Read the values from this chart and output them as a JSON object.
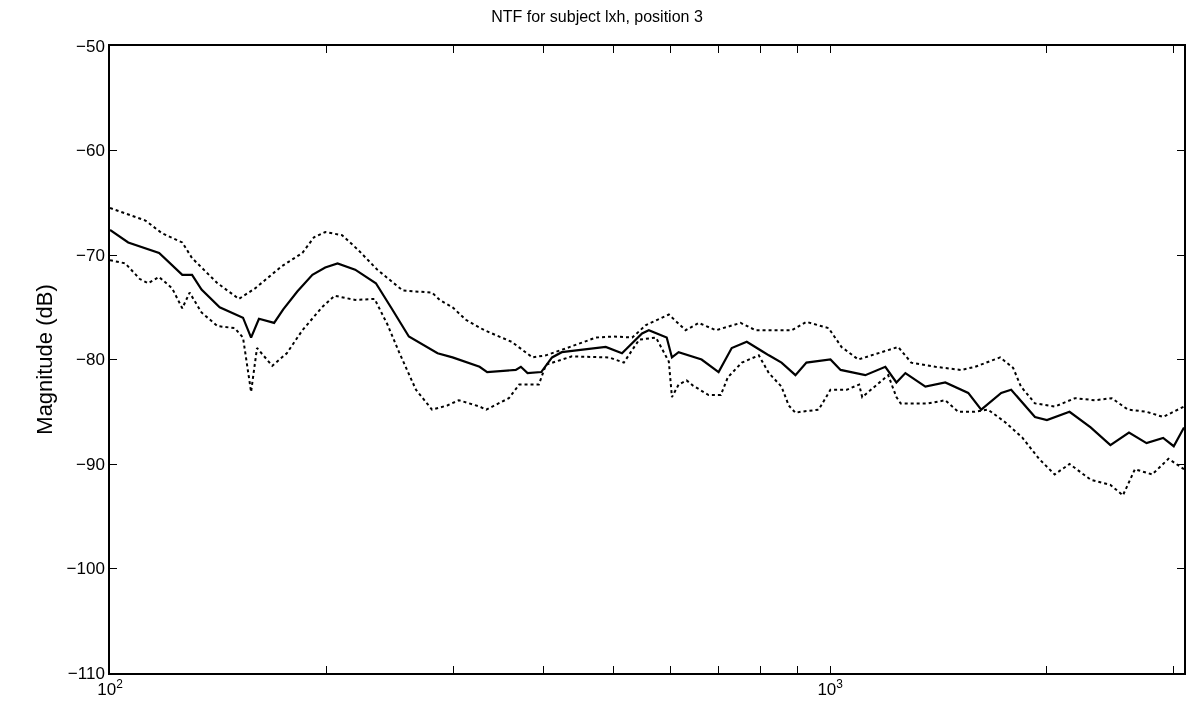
{
  "chart_data": {
    "type": "line",
    "title": "NTF for subject lxh, position 3",
    "ylabel": "Magnitude (dB)",
    "log": "x",
    "marker": "none",
    "xlim": [
      100,
      3100
    ],
    "ylim": [
      -110,
      -50
    ],
    "xticks": [
      {
        "value": 100,
        "label": "10$^{2}$"
      },
      {
        "value": 200,
        "label": null
      },
      {
        "value": 300,
        "label": null
      },
      {
        "value": 400,
        "label": null
      },
      {
        "value": 500,
        "label": null
      },
      {
        "value": 600,
        "label": null
      },
      {
        "value": 700,
        "label": null
      },
      {
        "value": 800,
        "label": null
      },
      {
        "value": 900,
        "label": null
      },
      {
        "value": 1000,
        "label": "10$^{3}$"
      },
      {
        "value": 2000,
        "label": null
      },
      {
        "value": 3000,
        "label": null
      }
    ],
    "yticks": [
      -110,
      -100,
      -90,
      -80,
      -70,
      -60,
      -50
    ],
    "series": [
      {
        "color": "#000000",
        "line_style": "solid",
        "x": [
          100,
          106,
          117,
          126,
          130,
          134,
          142,
          153,
          157,
          161,
          169,
          174,
          182,
          191,
          199,
          207,
          219,
          234,
          246,
          260,
          285,
          299,
          326,
          334,
          366,
          372,
          380,
          397,
          411,
          424,
          488,
          514,
          548,
          560,
          593,
          603,
          616,
          663,
          700,
          730,
          766,
          822,
          856,
          895,
          927,
          1001,
          1034,
          1119,
          1193,
          1236,
          1272,
          1356,
          1445,
          1555,
          1621,
          1728,
          1784,
          1925,
          2000,
          2150,
          2300,
          2450,
          2600,
          2750,
          2900,
          3000,
          3100
        ],
        "values": [
          -67.6,
          -68.8,
          -69.8,
          -71.9,
          -71.9,
          -73.3,
          -75.0,
          -76.0,
          -77.9,
          -76.1,
          -76.5,
          -75.2,
          -73.5,
          -71.9,
          -71.2,
          -70.8,
          -71.4,
          -72.7,
          -75.1,
          -77.8,
          -79.4,
          -79.8,
          -80.7,
          -81.2,
          -81.0,
          -80.7,
          -81.3,
          -81.2,
          -79.8,
          -79.3,
          -78.8,
          -79.4,
          -77.5,
          -77.2,
          -77.9,
          -79.8,
          -79.3,
          -80.0,
          -81.2,
          -78.9,
          -78.3,
          -79.6,
          -80.3,
          -81.5,
          -80.3,
          -80.0,
          -81.0,
          -81.5,
          -80.7,
          -82.2,
          -81.3,
          -82.6,
          -82.2,
          -83.2,
          -84.8,
          -83.2,
          -82.9,
          -85.5,
          -85.8,
          -85.0,
          -86.5,
          -88.2,
          -87.0,
          -88.0,
          -87.5,
          -88.3,
          -86.5
        ]
      },
      {
        "color": "#000000",
        "line_style": "dotted",
        "x": [
          100,
          112,
          118,
          126,
          130,
          141,
          151,
          159,
          173,
          185,
          192,
          199,
          210,
          221,
          235,
          255,
          280,
          287,
          299,
          312,
          331,
          361,
          386,
          403,
          431,
          473,
          501,
          531,
          555,
          597,
          630,
          657,
          694,
          751,
          788,
          884,
          927,
          995,
          1037,
          1094,
          1204,
          1243,
          1296,
          1400,
          1520,
          1590,
          1722,
          1795,
          1841,
          1925,
          2052,
          2188,
          2333,
          2460,
          2592,
          2750,
          2900,
          3100
        ],
        "values": [
          -65.5,
          -66.7,
          -67.9,
          -68.8,
          -70.3,
          -72.7,
          -74.2,
          -73.2,
          -71.1,
          -69.8,
          -68.3,
          -67.8,
          -68.1,
          -69.5,
          -71.4,
          -73.4,
          -73.6,
          -74.3,
          -75.0,
          -76.2,
          -77.2,
          -78.3,
          -79.8,
          -79.6,
          -78.9,
          -77.9,
          -77.8,
          -77.9,
          -76.7,
          -75.7,
          -77.2,
          -76.5,
          -77.2,
          -76.5,
          -77.2,
          -77.2,
          -76.4,
          -77.0,
          -78.8,
          -80.0,
          -79.1,
          -78.8,
          -80.3,
          -80.7,
          -81.0,
          -80.7,
          -79.8,
          -80.8,
          -82.6,
          -84.2,
          -84.5,
          -83.7,
          -83.9,
          -83.7,
          -84.8,
          -85.0,
          -85.5,
          -84.5
        ]
      },
      {
        "color": "#000000",
        "line_style": "dotted",
        "x": [
          100,
          105,
          110,
          113,
          117,
          122,
          126,
          129,
          134,
          141,
          149,
          153,
          157,
          160,
          168,
          176,
          185,
          197,
          205,
          219,
          233,
          243,
          252,
          266,
          280,
          294,
          305,
          326,
          333,
          358,
          370,
          394,
          403,
          438,
          493,
          517,
          543,
          573,
          597,
          603,
          616,
          632,
          645,
          678,
          705,
          721,
          754,
          796,
          822,
          856,
          876,
          895,
          910,
          964,
          1001,
          1054,
          1097,
          1108,
          1204,
          1236,
          1253,
          1369,
          1445,
          1506,
          1586,
          1657,
          1750,
          1850,
          1950,
          2050,
          2150,
          2300,
          2450,
          2550,
          2650,
          2800,
          2950,
          3100
        ],
        "values": [
          -70.5,
          -70.8,
          -72.3,
          -72.7,
          -72.1,
          -73.2,
          -75.1,
          -73.6,
          -75.5,
          -76.8,
          -77.0,
          -77.9,
          -83.1,
          -78.9,
          -80.6,
          -79.4,
          -77.2,
          -75.0,
          -73.9,
          -74.3,
          -74.2,
          -76.7,
          -79.3,
          -82.9,
          -84.8,
          -84.4,
          -83.9,
          -84.5,
          -84.8,
          -83.7,
          -82.4,
          -82.4,
          -80.5,
          -79.7,
          -79.8,
          -80.3,
          -78.1,
          -77.9,
          -80.2,
          -83.6,
          -82.4,
          -82.0,
          -82.5,
          -83.4,
          -83.4,
          -81.7,
          -80.3,
          -79.6,
          -81.3,
          -82.6,
          -84.4,
          -85.1,
          -85.0,
          -84.8,
          -82.9,
          -82.9,
          -82.4,
          -83.6,
          -81.5,
          -83.6,
          -84.2,
          -84.2,
          -83.9,
          -85.0,
          -85.0,
          -84.8,
          -86.0,
          -87.5,
          -89.5,
          -91.0,
          -90.0,
          -91.5,
          -92.0,
          -93.0,
          -90.5,
          -91.0,
          -89.5,
          -90.5
        ]
      }
    ]
  }
}
